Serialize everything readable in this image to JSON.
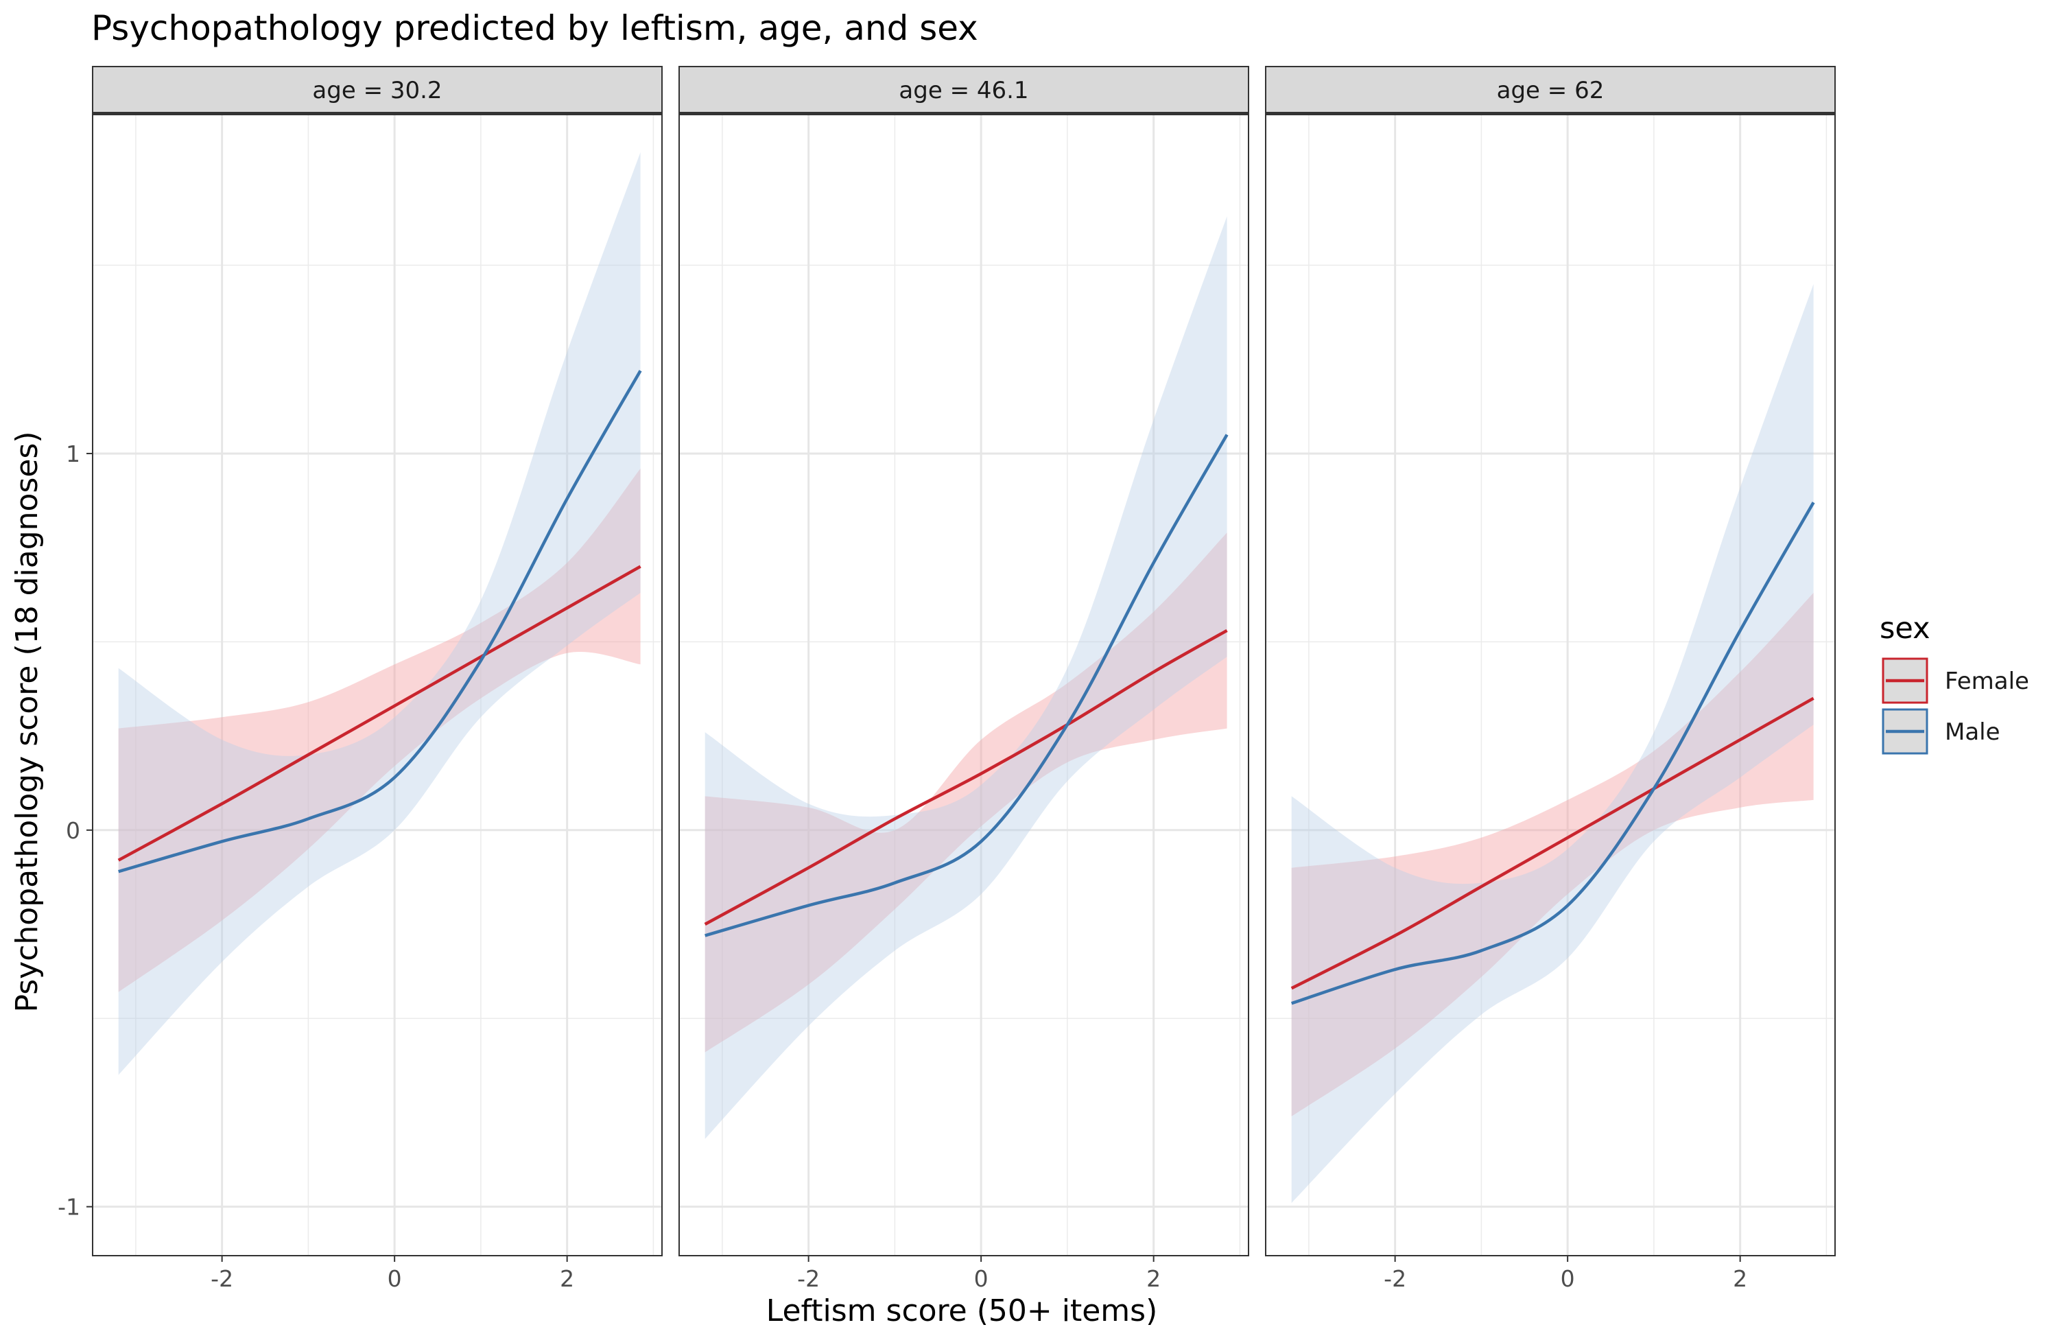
{
  "chart_data": {
    "type": "line",
    "title": "Psychopathology predicted by leftism, age, and sex",
    "xlabel": "Leftism score (50+ items)",
    "ylabel": "Psychopathology score (18 diagnoses)",
    "xlim": [
      -3.5,
      3.1
    ],
    "ylim": [
      -1.13,
      1.9
    ],
    "x_ticks": [
      -2,
      0,
      2
    ],
    "y_ticks": [
      -1,
      0,
      1
    ],
    "x_tick_labels": [
      "-2",
      "0",
      "2"
    ],
    "y_tick_labels": [
      "-1",
      "0",
      "1"
    ],
    "grid": true,
    "legend": {
      "title": "sex",
      "position": "right",
      "entries": [
        {
          "label": "Female",
          "color": "#c9252e",
          "fill": "#f4a3a6"
        },
        {
          "label": "Male",
          "color": "#3a75ad",
          "fill": "#b9cfe6"
        }
      ]
    },
    "panels": [
      {
        "label": "age = 30.2",
        "series": [
          {
            "name": "Female",
            "x": [
              -3.2,
              -2.0,
              -1.0,
              0.0,
              1.0,
              2.0,
              2.85
            ],
            "y": [
              -0.08,
              0.07,
              0.2,
              0.33,
              0.46,
              0.59,
              0.7
            ],
            "lower": [
              -0.43,
              -0.24,
              -0.05,
              0.17,
              0.35,
              0.47,
              0.44
            ],
            "upper": [
              0.27,
              0.3,
              0.34,
              0.44,
              0.55,
              0.71,
              0.96
            ]
          },
          {
            "name": "Male",
            "x": [
              -3.2,
              -2.0,
              -1.0,
              0.0,
              1.0,
              2.0,
              2.85
            ],
            "y": [
              -0.11,
              -0.03,
              0.03,
              0.14,
              0.45,
              0.88,
              1.22
            ],
            "lower": [
              -0.65,
              -0.35,
              -0.15,
              0.0,
              0.3,
              0.49,
              0.63
            ],
            "upper": [
              0.43,
              0.24,
              0.2,
              0.3,
              0.61,
              1.27,
              1.8
            ]
          }
        ]
      },
      {
        "label": "age = 46.1",
        "series": [
          {
            "name": "Female",
            "x": [
              -3.2,
              -2.0,
              -1.0,
              0.0,
              1.0,
              2.0,
              2.85
            ],
            "y": [
              -0.25,
              -0.1,
              0.03,
              0.15,
              0.28,
              0.42,
              0.53
            ],
            "lower": [
              -0.59,
              -0.41,
              -0.21,
              0.01,
              0.18,
              0.24,
              0.27
            ],
            "upper": [
              0.09,
              0.06,
              0.0,
              0.24,
              0.39,
              0.58,
              0.79
            ]
          },
          {
            "name": "Male",
            "x": [
              -3.2,
              -2.0,
              -1.0,
              0.0,
              1.0,
              2.0,
              2.85
            ],
            "y": [
              -0.28,
              -0.2,
              -0.14,
              -0.03,
              0.28,
              0.71,
              1.05
            ],
            "lower": [
              -0.82,
              -0.52,
              -0.32,
              -0.17,
              0.13,
              0.32,
              0.46
            ],
            "upper": [
              0.26,
              0.07,
              0.04,
              0.12,
              0.43,
              1.09,
              1.63
            ]
          }
        ]
      },
      {
        "label": "age = 62",
        "series": [
          {
            "name": "Female",
            "x": [
              -3.2,
              -2.0,
              -1.0,
              0.0,
              1.0,
              2.0,
              2.85
            ],
            "y": [
              -0.42,
              -0.28,
              -0.15,
              -0.02,
              0.11,
              0.24,
              0.35
            ],
            "lower": [
              -0.76,
              -0.58,
              -0.39,
              -0.17,
              0.0,
              0.06,
              0.08
            ],
            "upper": [
              -0.1,
              -0.07,
              -0.02,
              0.08,
              0.21,
              0.42,
              0.63
            ]
          },
          {
            "name": "Male",
            "x": [
              -3.2,
              -2.0,
              -1.0,
              0.0,
              1.0,
              2.0,
              2.85
            ],
            "y": [
              -0.46,
              -0.37,
              -0.32,
              -0.2,
              0.11,
              0.53,
              0.87
            ],
            "lower": [
              -0.99,
              -0.7,
              -0.49,
              -0.34,
              -0.03,
              0.14,
              0.28
            ],
            "upper": [
              0.09,
              -0.1,
              -0.14,
              -0.05,
              0.26,
              0.91,
              1.45
            ]
          }
        ]
      }
    ]
  }
}
